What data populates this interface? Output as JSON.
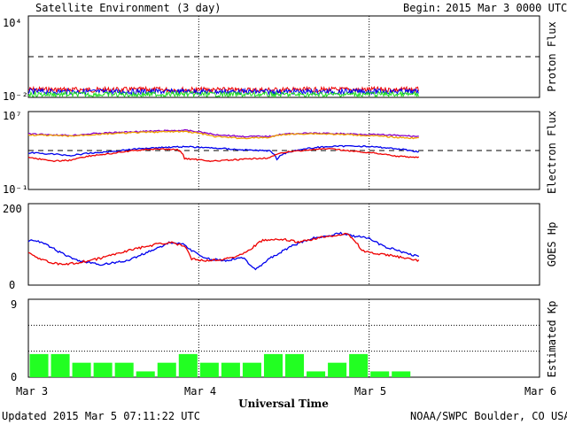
{
  "header": {
    "title": "Satellite Environment (3 day)",
    "begin_label": "Begin:",
    "begin_value": "2015 Mar 3 0000 UTC"
  },
  "footer": {
    "updated": "Updated 2015 Mar  5 07:11:22 UTC",
    "credit": "NOAA/SWPC Boulder, CO USA",
    "xlabel": "Universal Time"
  },
  "x_axis": {
    "ticks": [
      "Mar 3",
      "Mar 4",
      "Mar 5",
      "Mar 6"
    ],
    "range_hours": [
      0,
      72
    ],
    "dotted_gridlines_at_hours": [
      24,
      48
    ]
  },
  "colors": {
    "red": "#ee0000",
    "blue": "#0000ee",
    "green": "#22dd22",
    "purple": "#8a00c8",
    "orange": "#f0a000",
    "kp_bar": "#22ff22"
  },
  "chart_data": [
    {
      "type": "line",
      "name": "proton",
      "ylabel": "Proton Flux",
      "yscale": "log",
      "ylim": [
        0.01,
        10000
      ],
      "ytick_labels": [
        "10⁴",
        "10⁻²"
      ],
      "threshold": 10,
      "x_hours_range": [
        0,
        55
      ],
      "series": [
        {
          "color": "red",
          "x": [
            0,
            10,
            20,
            30,
            40,
            50,
            55
          ],
          "values": [
            0.038,
            0.036,
            0.037,
            0.035,
            0.036,
            0.038,
            0.037
          ]
        },
        {
          "color": "blue",
          "x": [
            0,
            10,
            20,
            30,
            40,
            50,
            55
          ],
          "values": [
            0.027,
            0.026,
            0.027,
            0.026,
            0.026,
            0.027,
            0.026
          ]
        },
        {
          "color": "green",
          "x": [
            0,
            10,
            20,
            30,
            40,
            50,
            55
          ],
          "values": [
            0.017,
            0.016,
            0.017,
            0.016,
            0.016,
            0.017,
            0.016
          ]
        }
      ]
    },
    {
      "type": "line",
      "name": "electron",
      "ylabel": "Electron Flux",
      "yscale": "log",
      "ylim": [
        0.1,
        10000000
      ],
      "ytick_labels": [
        "10⁷",
        "10⁻¹"
      ],
      "threshold": 1000,
      "series": [
        {
          "color": "purple",
          "x": [
            0,
            6,
            12,
            18,
            22,
            26,
            30,
            34,
            36,
            40,
            46,
            52,
            55
          ],
          "values": [
            50000,
            35000,
            70000,
            100000,
            120000,
            45000,
            28000,
            28000,
            50000,
            60000,
            50000,
            35000,
            28000
          ]
        },
        {
          "color": "orange",
          "x": [
            0,
            6,
            12,
            18,
            22,
            26,
            30,
            34,
            36,
            40,
            46,
            52,
            55
          ],
          "values": [
            40000,
            30000,
            55000,
            80000,
            90000,
            28000,
            18000,
            22000,
            45000,
            55000,
            40000,
            22000,
            18000
          ]
        },
        {
          "color": "blue",
          "x": [
            0,
            3,
            6,
            12,
            18,
            22,
            26,
            30,
            34,
            35,
            37,
            42,
            46,
            52,
            55
          ],
          "values": [
            600,
            450,
            300,
            800,
            2000,
            2500,
            1800,
            1200,
            900,
            120,
            800,
            2500,
            3000,
            1500,
            700
          ]
        },
        {
          "color": "red",
          "x": [
            0,
            3,
            6,
            12,
            18,
            21,
            22,
            26,
            30,
            34,
            37,
            42,
            46,
            52,
            55
          ],
          "values": [
            200,
            80,
            100,
            500,
            1500,
            1200,
            150,
            80,
            120,
            180,
            800,
            1500,
            800,
            250,
            200
          ]
        }
      ]
    },
    {
      "type": "line",
      "name": "goes_hp",
      "ylabel": "GOES Hp",
      "ylim": [
        0,
        200
      ],
      "ytick_labels": [
        "200",
        "0"
      ],
      "series": [
        {
          "color": "blue",
          "x": [
            0,
            1,
            3,
            5,
            7,
            10,
            14,
            18,
            20,
            22,
            23,
            25,
            28,
            30,
            31,
            32,
            34,
            37,
            40,
            42,
            44,
            46,
            48,
            50,
            52,
            55
          ],
          "values": [
            108,
            110,
            95,
            75,
            60,
            50,
            60,
            90,
            105,
            100,
            85,
            65,
            60,
            70,
            55,
            40,
            65,
            95,
            115,
            120,
            128,
            120,
            115,
            95,
            85,
            70
          ]
        },
        {
          "color": "red",
          "x": [
            0,
            1,
            3,
            5,
            7,
            10,
            14,
            18,
            20,
            22,
            23,
            25,
            28,
            30,
            31,
            33,
            36,
            38,
            42,
            45,
            46,
            47,
            48,
            50,
            52,
            55
          ],
          "values": [
            80,
            70,
            55,
            50,
            55,
            65,
            85,
            100,
            105,
            95,
            65,
            60,
            65,
            75,
            85,
            110,
            112,
            105,
            120,
            125,
            110,
            85,
            80,
            75,
            70,
            60
          ]
        }
      ]
    },
    {
      "type": "bar",
      "name": "kp",
      "ylabel": "Estimated Kp",
      "ylim": [
        0,
        9
      ],
      "ytick_labels": [
        "9",
        "0"
      ],
      "dotted_gridlines_at": [
        3,
        6
      ],
      "bar_width_hours": 3,
      "x_hours": [
        0,
        3,
        6,
        9,
        12,
        15,
        18,
        21,
        24,
        27,
        30,
        33,
        36,
        39,
        42,
        45,
        48,
        51,
        54
      ],
      "values": [
        2.67,
        2.67,
        1.67,
        1.67,
        1.67,
        0.67,
        1.67,
        2.67,
        1.67,
        1.67,
        1.67,
        2.67,
        2.67,
        0.67,
        1.67,
        2.67,
        0.67,
        0.67,
        0
      ]
    }
  ]
}
